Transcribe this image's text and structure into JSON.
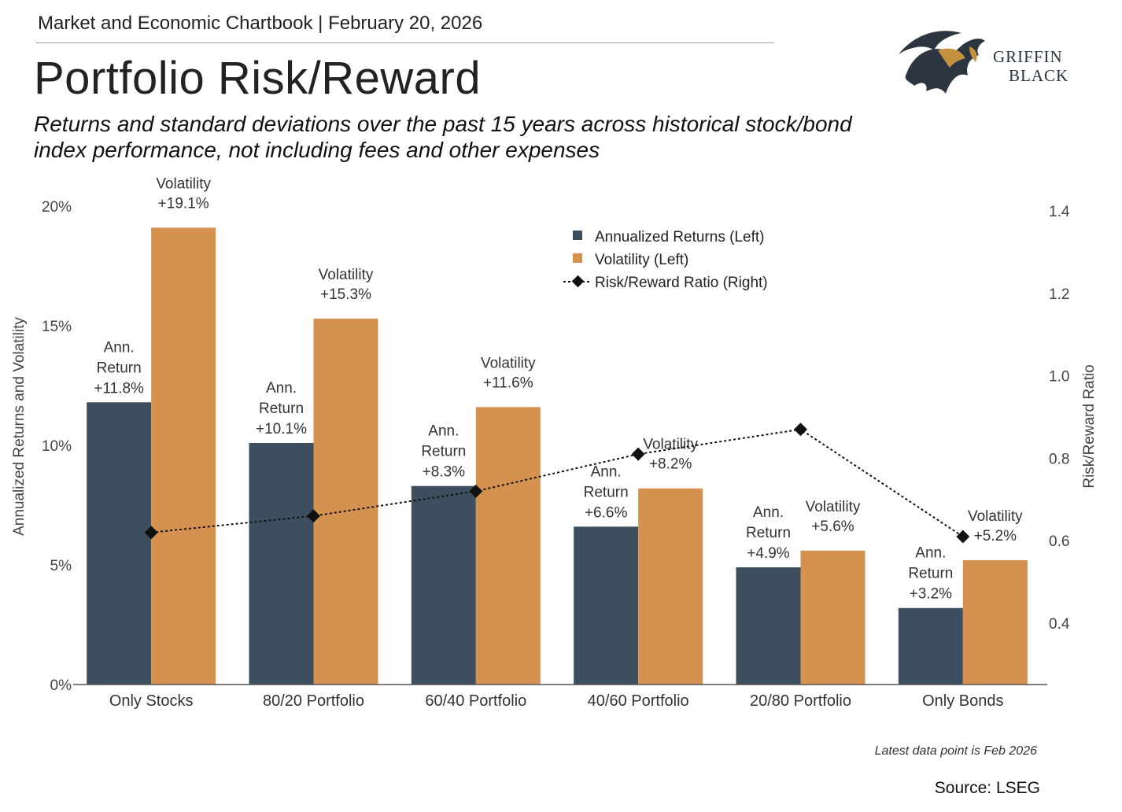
{
  "header": {
    "chartbook": "Market and Economic Chartbook | February 20, 2026",
    "title": "Portfolio Risk/Reward",
    "subtitle": "Returns and standard deviations over the past 15 years across historical stock/bond index performance, not including fees and other expenses"
  },
  "logo": {
    "line1": "GRIFFIN",
    "line2": "BLACK"
  },
  "chart_data": {
    "type": "bar",
    "categories": [
      "Only Stocks",
      "80/20 Portfolio",
      "60/40 Portfolio",
      "40/60 Portfolio",
      "20/80 Portfolio",
      "Only Bonds"
    ],
    "series": [
      {
        "name": "Annualized Returns (Left)",
        "type": "bar",
        "axis": "left",
        "values": [
          11.8,
          10.1,
          8.3,
          6.6,
          4.9,
          3.2
        ],
        "labels": [
          "Ann.\nReturn\n+11.8%",
          "Ann.\nReturn\n+10.1%",
          "Ann.\nReturn\n+8.3%",
          "Ann.\nReturn\n+6.6%",
          "Ann.\nReturn\n+4.9%",
          "Ann.\nReturn\n+3.2%"
        ]
      },
      {
        "name": "Volatility (Left)",
        "type": "bar",
        "axis": "left",
        "values": [
          19.1,
          15.3,
          11.6,
          8.2,
          5.6,
          5.2
        ],
        "labels": [
          "Volatility\n+19.1%",
          "Volatility\n+15.3%",
          "Volatility\n+11.6%",
          "Volatility\n+8.2%",
          "Volatility\n+5.6%",
          "Volatility\n+5.2%"
        ]
      },
      {
        "name": "Risk/Reward Ratio (Right)",
        "type": "line",
        "axis": "right",
        "values": [
          0.62,
          0.66,
          0.72,
          0.81,
          0.87,
          0.61
        ]
      }
    ],
    "ylabel": "Annualized Returns and Volatility",
    "y2label": "Risk/Reward Ratio",
    "ylim": [
      0,
      20
    ],
    "y2lim": [
      0.24,
      1.4
    ],
    "yticks": [
      0,
      5,
      10,
      15,
      20
    ],
    "ytick_labels": [
      "0%",
      "5%",
      "10%",
      "15%",
      "20%"
    ],
    "y2ticks": [
      0.4,
      0.6,
      0.8,
      1.0,
      1.2,
      1.4
    ],
    "y2tick_labels": [
      "0.4",
      "0.6",
      "0.8",
      "1.0",
      "1.2",
      "1.4"
    ],
    "legend_position": "top-center",
    "grid": false,
    "colors": {
      "returns": "#3d4f5e",
      "volatility": "#d4914f",
      "ratio": "#111111"
    }
  },
  "footnote": "Latest data point is Feb 2026",
  "source": "Source: LSEG"
}
